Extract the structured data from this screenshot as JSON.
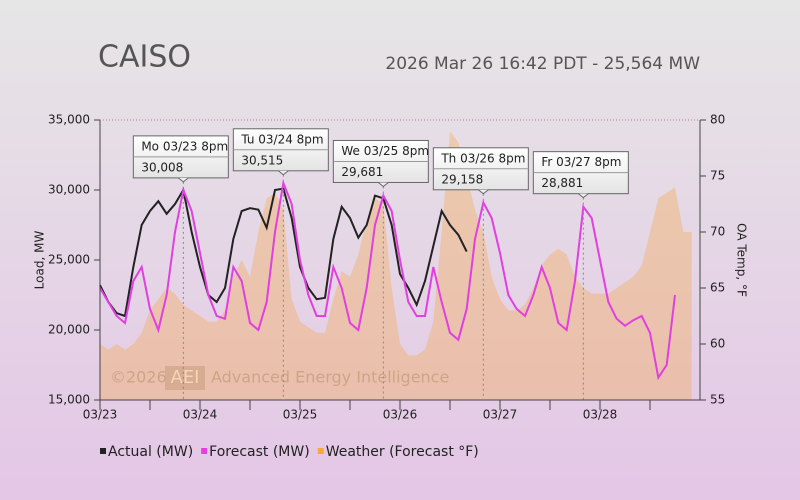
{
  "chart_data": {
    "type": "line",
    "title": "CAISO",
    "subtitle": "2026 Mar 26 16:42 PDT - 25,564 MW",
    "ylabel": "Load, MW",
    "y2label": "OA Temp, °F",
    "watermark": {
      "year": "©2026",
      "logo": "AEI",
      "name": "Advanced Energy Intelligence"
    },
    "xlim": [
      0,
      144
    ],
    "xticks": [
      {
        "value": 0,
        "label": "03/23"
      },
      {
        "value": 24,
        "label": "03/24"
      },
      {
        "value": 48,
        "label": "03/25"
      },
      {
        "value": 72,
        "label": "03/26"
      },
      {
        "value": 96,
        "label": "03/27"
      },
      {
        "value": 120,
        "label": "03/28"
      }
    ],
    "ylim": [
      15000,
      35000
    ],
    "yticks": [
      {
        "value": 15000,
        "label": "15,000"
      },
      {
        "value": 20000,
        "label": "20,000"
      },
      {
        "value": 25000,
        "label": "25,000"
      },
      {
        "value": 30000,
        "label": "30,000"
      },
      {
        "value": 35000,
        "label": "35,000"
      }
    ],
    "y2lim": [
      55,
      80
    ],
    "y2ticks": [
      55,
      60,
      65,
      70,
      75,
      80
    ],
    "grid": false,
    "legend": "bottom",
    "x": [
      0,
      2,
      4,
      6,
      8,
      10,
      12,
      14,
      16,
      18,
      20,
      22,
      24,
      26,
      28,
      30,
      32,
      34,
      36,
      38,
      40,
      42,
      44,
      46,
      48,
      50,
      52,
      54,
      56,
      58,
      60,
      62,
      64,
      66,
      68,
      70,
      72,
      74,
      76,
      78,
      80,
      82,
      84,
      86,
      88,
      90,
      92,
      94,
      96,
      98,
      100,
      102,
      104,
      106,
      108,
      110,
      112,
      114,
      116,
      118,
      120,
      122,
      124,
      126,
      128,
      130,
      132,
      134,
      136,
      138,
      140,
      142
    ],
    "series": [
      {
        "name": "Weather (Forecast °F)",
        "color": "#f5a742",
        "area": true,
        "axis": "y2",
        "values": [
          60,
          59.5,
          60,
          59.5,
          60,
          61,
          63,
          64,
          65,
          64.5,
          63.5,
          63,
          62.5,
          62,
          62,
          63,
          66,
          67.5,
          66,
          70,
          73,
          73.5,
          72,
          64,
          62,
          61.5,
          61,
          61,
          64,
          66.5,
          66,
          68,
          71,
          73,
          72.5,
          65,
          60,
          59,
          59,
          59.5,
          62,
          70,
          79,
          78,
          75,
          72,
          70,
          66,
          64,
          63,
          63,
          63.5,
          65,
          67,
          68,
          68.5,
          68,
          66,
          65,
          64.5,
          64.5,
          64.5,
          65,
          65.5,
          66,
          67,
          70,
          73,
          73.5,
          74,
          70,
          70
        ]
      },
      {
        "name": "Actual (MW)",
        "color": "#222222",
        "values": [
          23200,
          22000,
          21200,
          21000,
          24500,
          27500,
          28500,
          29200,
          28300,
          29000,
          30000,
          27000,
          24500,
          22500,
          22000,
          23000,
          26500,
          28500,
          28700,
          28600,
          27300,
          30000,
          30100,
          28000,
          24500,
          23000,
          22200,
          22300,
          26500,
          28800,
          28000,
          26600,
          27500,
          29600,
          29400,
          27500,
          24000,
          23000,
          21800,
          23500,
          26000,
          28500,
          27500,
          26800,
          25600,
          null,
          null,
          null,
          null,
          null,
          null,
          null,
          null,
          null,
          null,
          null,
          null,
          null,
          null,
          null,
          null,
          null,
          null,
          null,
          null,
          null,
          null,
          null,
          null,
          null,
          null,
          null
        ]
      },
      {
        "name": "Forecast (MW)",
        "color": "#e040e0",
        "values": [
          23000,
          22000,
          21000,
          20500,
          23500,
          24500,
          21500,
          20000,
          22500,
          27000,
          30000,
          28500,
          25500,
          22500,
          21000,
          20800,
          24500,
          23500,
          20500,
          20000,
          22000,
          27000,
          30500,
          29000,
          25000,
          22500,
          21000,
          21000,
          24500,
          23000,
          20500,
          20000,
          23000,
          27500,
          29600,
          28500,
          25000,
          22000,
          21000,
          21000,
          24500,
          22000,
          19800,
          19300,
          21500,
          26500,
          29100,
          28000,
          25500,
          22500,
          21500,
          21000,
          22500,
          24500,
          23000,
          20500,
          20000,
          23500,
          28800,
          28000,
          25000,
          22000,
          20800,
          20300,
          20700,
          21000,
          19800,
          16600,
          17500,
          22500,
          null,
          null
        ]
      }
    ],
    "annotations": [
      {
        "x": 20,
        "label": "Mo 03/23 8pm",
        "value": 30008,
        "value_label": "30,008"
      },
      {
        "x": 44,
        "label": "Tu 03/24 8pm",
        "value": 30515,
        "value_label": "30,515"
      },
      {
        "x": 68,
        "label": "We 03/25 8pm",
        "value": 29681,
        "value_label": "29,681"
      },
      {
        "x": 92,
        "label": "Th 03/26 8pm",
        "value": 29158,
        "value_label": "29,158",
        "color": "#dd0000"
      },
      {
        "x": 116,
        "label": "Fr 03/27 8pm",
        "value": 28881,
        "value_label": "28,881"
      }
    ]
  }
}
